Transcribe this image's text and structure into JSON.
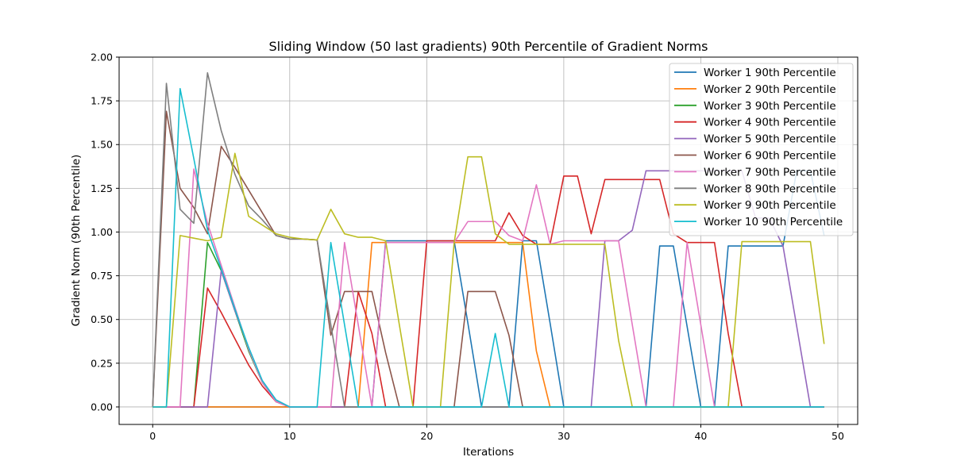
{
  "chart_data": {
    "type": "line",
    "title": "Sliding Window (50 last gradients) 90th Percentile of Gradient Norms",
    "xlabel": "Iterations",
    "ylabel": "Gradient Norm (90th Percentile)",
    "xlim": [
      -2.45,
      51.45
    ],
    "ylim": [
      -0.1,
      2.0
    ],
    "xticks": [
      0,
      10,
      20,
      30,
      40,
      50
    ],
    "yticks": [
      0.0,
      0.25,
      0.5,
      0.75,
      1.0,
      1.25,
      1.5,
      1.75,
      2.0
    ],
    "ytick_labels": [
      "0.00",
      "0.25",
      "0.50",
      "0.75",
      "1.00",
      "1.25",
      "1.50",
      "1.75",
      "2.00"
    ],
    "grid": true,
    "legend_position": "top-right",
    "x": [
      0,
      1,
      2,
      3,
      4,
      5,
      6,
      7,
      8,
      9,
      10,
      11,
      12,
      13,
      14,
      15,
      16,
      17,
      18,
      19,
      20,
      21,
      22,
      23,
      24,
      25,
      26,
      27,
      28,
      29,
      30,
      31,
      32,
      33,
      34,
      35,
      36,
      37,
      38,
      39,
      40,
      41,
      42,
      43,
      44,
      45,
      46,
      47,
      48,
      49
    ],
    "series": [
      {
        "name": "Worker 1 90th Percentile",
        "color": "#1f77b4",
        "values": [
          0,
          0,
          0,
          0,
          0,
          0,
          0,
          0,
          0,
          0,
          0,
          0,
          0,
          0,
          0,
          0,
          0,
          0.95,
          0.95,
          0.95,
          0.95,
          0.95,
          0.95,
          0.48,
          0,
          0,
          0,
          0.95,
          0.95,
          0.48,
          0,
          0,
          0,
          0,
          0,
          0,
          0,
          0.92,
          0.92,
          0.46,
          0,
          0,
          0.92,
          0.92,
          0.92,
          0.92,
          0.92,
          1.35,
          1.35,
          0.98
        ]
      },
      {
        "name": "Worker 2 90th Percentile",
        "color": "#ff7f0e",
        "values": [
          0,
          0,
          0,
          0,
          0,
          0,
          0,
          0,
          0,
          0,
          0,
          0,
          0,
          0,
          0,
          0,
          0.94,
          0.94,
          0.94,
          0.94,
          0.94,
          0.94,
          0.94,
          0.94,
          0.94,
          0.94,
          0.94,
          0.94,
          0.32,
          0,
          0,
          0,
          0,
          0,
          0,
          0,
          0,
          0,
          0,
          0,
          0,
          0,
          0,
          0,
          0,
          0,
          0,
          0,
          0,
          0
        ]
      },
      {
        "name": "Worker 3 90th Percentile",
        "color": "#2ca02c",
        "values": [
          0,
          0,
          0,
          0,
          0.94,
          0.78,
          0.55,
          0.32,
          0.14,
          0.03,
          0,
          0,
          0,
          0,
          0,
          0,
          0,
          0,
          0,
          0,
          0,
          0,
          0,
          0,
          0,
          0,
          0,
          0,
          0,
          0,
          0,
          0,
          0,
          0,
          0,
          0,
          0,
          0,
          0,
          0,
          0,
          0,
          0,
          0,
          0,
          0,
          0,
          0,
          0,
          0
        ]
      },
      {
        "name": "Worker 4 90th Percentile",
        "color": "#d62728",
        "values": [
          0,
          0,
          0,
          0,
          0.68,
          0.54,
          0.39,
          0.24,
          0.12,
          0.03,
          0,
          0,
          0,
          0,
          0,
          0.66,
          0.42,
          0,
          0,
          0,
          0.95,
          0.95,
          0.95,
          0.95,
          0.95,
          0.95,
          1.11,
          0.98,
          0.93,
          0.93,
          1.32,
          1.32,
          0.99,
          1.3,
          1.3,
          1.3,
          1.3,
          1.3,
          0.99,
          0.94,
          0.94,
          0.94,
          0.42,
          0,
          0,
          0,
          0,
          0,
          0,
          0
        ]
      },
      {
        "name": "Worker 5 90th Percentile",
        "color": "#9467bd",
        "values": [
          0,
          0,
          0,
          0,
          0,
          0.78,
          0.55,
          0.34,
          0.15,
          0.04,
          0,
          0,
          0,
          0,
          0,
          0,
          0,
          0,
          0,
          0,
          0,
          0,
          0,
          0,
          0,
          0,
          0,
          0,
          0,
          0,
          0,
          0,
          0,
          0.95,
          0.95,
          1.01,
          1.35,
          1.35,
          1.35,
          1.35,
          1.35,
          1.35,
          1.35,
          1.35,
          1.08,
          1.08,
          0.92,
          0.46,
          0,
          0
        ]
      },
      {
        "name": "Worker 6 90th Percentile",
        "color": "#8c564b",
        "values": [
          0,
          1.69,
          1.25,
          1.14,
          0.99,
          1.49,
          1.37,
          1.24,
          1.11,
          0.98,
          0.96,
          0.96,
          0.955,
          0.41,
          0.66,
          0.66,
          0.66,
          0.31,
          0,
          0,
          0,
          0,
          0,
          0.66,
          0.66,
          0.66,
          0.41,
          0,
          0,
          0,
          0,
          0,
          0,
          0,
          0,
          0,
          0,
          0,
          0,
          0,
          0,
          0,
          0,
          0,
          0,
          0,
          0,
          0,
          0,
          0
        ]
      },
      {
        "name": "Worker 7 90th Percentile",
        "color": "#e377c2",
        "values": [
          0,
          0,
          0,
          1.36,
          1.05,
          0.81,
          0.57,
          0.33,
          0.14,
          0.03,
          0,
          0,
          0,
          0,
          0.94,
          0.47,
          0,
          0.94,
          0.94,
          0.94,
          0.94,
          0.94,
          0.94,
          1.06,
          1.06,
          1.06,
          0.98,
          0.95,
          1.27,
          0.93,
          0.95,
          0.95,
          0.95,
          0.95,
          0.95,
          0.47,
          0,
          0,
          0,
          0.94,
          0.47,
          0,
          0,
          0,
          0,
          0,
          0,
          0,
          0,
          0
        ]
      },
      {
        "name": "Worker 8 90th Percentile",
        "color": "#7f7f7f",
        "values": [
          0,
          1.85,
          1.13,
          1.05,
          1.91,
          1.58,
          1.33,
          1.15,
          1.07,
          0.98,
          0.96,
          0.96,
          0.955,
          0.47,
          0,
          0,
          0,
          0,
          0,
          0,
          0,
          0,
          0,
          0,
          0,
          0,
          0,
          0,
          0,
          0,
          0,
          0,
          0,
          0,
          0,
          0,
          0,
          0,
          0,
          0,
          0,
          0,
          0,
          0,
          0,
          0,
          0,
          0,
          0,
          0
        ]
      },
      {
        "name": "Worker 9 90th Percentile",
        "color": "#bcbd22",
        "values": [
          0,
          0,
          0.98,
          0.965,
          0.95,
          0.97,
          1.45,
          1.09,
          1.04,
          0.99,
          0.97,
          0.96,
          0.955,
          1.13,
          0.99,
          0.97,
          0.97,
          0.95,
          0.47,
          0,
          0,
          0,
          0.94,
          1.43,
          1.43,
          0.99,
          0.93,
          0.93,
          0.93,
          0.93,
          0.93,
          0.93,
          0.93,
          0.93,
          0.38,
          0,
          0,
          0,
          0,
          0,
          0,
          0,
          0,
          0.945,
          0.945,
          0.945,
          0.945,
          0.945,
          0.945,
          0.36
        ]
      },
      {
        "name": "Worker 10 90th Percentile",
        "color": "#17becf",
        "values": [
          0,
          0,
          1.82,
          1.42,
          1.01,
          0.79,
          0.56,
          0.34,
          0.15,
          0.04,
          0,
          0,
          0,
          0.94,
          0.47,
          0,
          0,
          0,
          0,
          0,
          0,
          0,
          0,
          0,
          0,
          0.42,
          0,
          0,
          0,
          0,
          0,
          0,
          0,
          0,
          0,
          0,
          0,
          0,
          0,
          0,
          0,
          0,
          0,
          0,
          0,
          0,
          0,
          0,
          0,
          0
        ]
      }
    ]
  }
}
